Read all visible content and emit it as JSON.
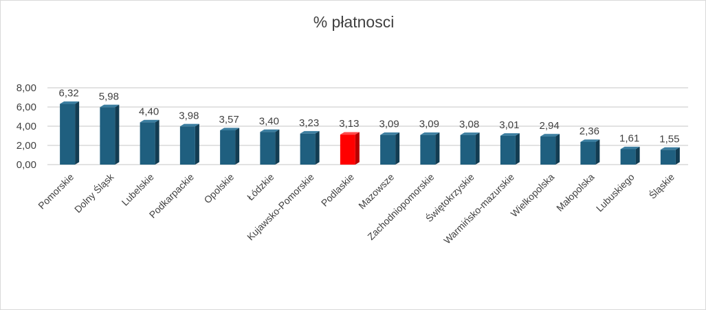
{
  "chart_data": {
    "type": "bar",
    "title": "% płatnosci",
    "xlabel": "",
    "ylabel": "",
    "ylim": [
      0,
      8
    ],
    "yticks": [
      "0,00",
      "2,00",
      "4,00",
      "6,00",
      "8,00"
    ],
    "grid": true,
    "legend": "none",
    "categories": [
      "Pomorskie",
      "Dolny Śląsk",
      "Lubelskie",
      "Podkarpackie",
      "Opolskie",
      "Łódzkie",
      "Kujawsko-Pomorskie",
      "Podlaskie",
      "Mazowsze",
      "Zachodniopomorskie",
      "Świętokrzyskie",
      "Warmińsko-mazurskie",
      "Wielkopolska",
      "Małopolska",
      "Lubuskiego",
      "Śląskie"
    ],
    "values": [
      6.32,
      5.98,
      4.4,
      3.98,
      3.57,
      3.4,
      3.23,
      3.13,
      3.09,
      3.09,
      3.08,
      3.01,
      2.94,
      2.36,
      1.61,
      1.55
    ],
    "value_labels": [
      "6,32",
      "5,98",
      "4,40",
      "3,98",
      "3,57",
      "3,40",
      "3,23",
      "3,13",
      "3,09",
      "3,09",
      "3,08",
      "3,01",
      "2,94",
      "2,36",
      "1,61",
      "1,55"
    ],
    "highlight_index": 7,
    "colors": {
      "bar": "#1f5f7f",
      "bar_side": "#123c52",
      "bar_top": "#3b7ea0",
      "highlight": "#ff0000",
      "highlight_side": "#b50000",
      "highlight_top": "#ff4a4a",
      "grid": "#d9d9d9",
      "text": "#404040"
    }
  }
}
